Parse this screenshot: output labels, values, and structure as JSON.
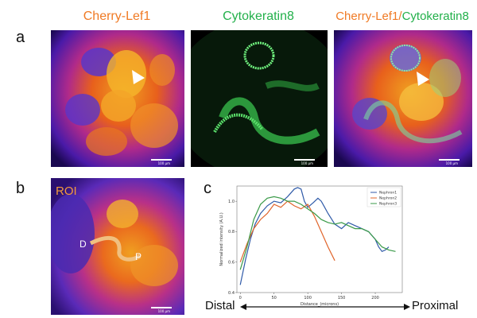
{
  "panel_a": {
    "letter": "a",
    "titles": {
      "cherry": "Cherry-Lef1",
      "cyto": "Cytokeratin8",
      "merge_part1": "Cherry-Lef1/",
      "merge_part2": "Cytokeratin8"
    },
    "scale_label": "100 μm"
  },
  "panel_b": {
    "letter": "b",
    "roi_label": "ROI",
    "distal_marker": "D",
    "proximal_marker": "P",
    "scale_label": "100 μm"
  },
  "panel_c": {
    "letter": "c"
  },
  "bottom": {
    "distal": "Distal",
    "proximal": "Proximal"
  },
  "colors": {
    "cherry": "#f07a24",
    "cyto": "#22b04a",
    "nephron1": "#2f5aa8",
    "nephron2": "#e0642a",
    "nephron3": "#3a9a48"
  },
  "chart_data": {
    "type": "line",
    "title": "",
    "xlabel": "Distance_(microns)",
    "ylabel": "Normalized intensity (A.U.)",
    "xlim": [
      -5,
      240
    ],
    "ylim": [
      0.4,
      1.1
    ],
    "xticks": [
      0,
      50,
      100,
      150,
      200
    ],
    "yticks": [
      0.4,
      0.6,
      0.8,
      1.0
    ],
    "series": [
      {
        "name": "Nephron1",
        "color": "#2f5aa8",
        "x": [
          0,
          8,
          15,
          22,
          30,
          40,
          50,
          60,
          70,
          80,
          85,
          90,
          95,
          100,
          108,
          115,
          120,
          125,
          130,
          140,
          150,
          160,
          170,
          180,
          190,
          200,
          205,
          210,
          215,
          220
        ],
        "y": [
          0.45,
          0.62,
          0.75,
          0.85,
          0.92,
          0.97,
          1.0,
          0.99,
          1.03,
          1.08,
          1.09,
          1.08,
          1.0,
          0.96,
          0.99,
          1.02,
          1.0,
          0.96,
          0.92,
          0.85,
          0.82,
          0.86,
          0.84,
          0.82,
          0.8,
          0.75,
          0.7,
          0.67,
          0.68,
          0.7
        ]
      },
      {
        "name": "Nephron2",
        "color": "#e0642a",
        "x": [
          0,
          10,
          20,
          30,
          40,
          50,
          60,
          70,
          80,
          90,
          100,
          110,
          120,
          130,
          140
        ],
        "y": [
          0.6,
          0.72,
          0.82,
          0.88,
          0.92,
          0.98,
          0.96,
          1.0,
          0.97,
          0.95,
          0.98,
          0.9,
          0.8,
          0.7,
          0.61
        ]
      },
      {
        "name": "Nephron3",
        "color": "#3a9a48",
        "x": [
          0,
          10,
          20,
          30,
          40,
          50,
          60,
          70,
          80,
          90,
          100,
          110,
          120,
          130,
          140,
          150,
          160,
          170,
          180,
          190,
          200,
          210,
          220,
          230
        ],
        "y": [
          0.55,
          0.7,
          0.88,
          0.98,
          1.02,
          1.03,
          1.02,
          1.0,
          1.0,
          0.98,
          0.95,
          0.92,
          0.88,
          0.86,
          0.85,
          0.86,
          0.84,
          0.82,
          0.82,
          0.8,
          0.75,
          0.7,
          0.68,
          0.67
        ]
      }
    ]
  }
}
